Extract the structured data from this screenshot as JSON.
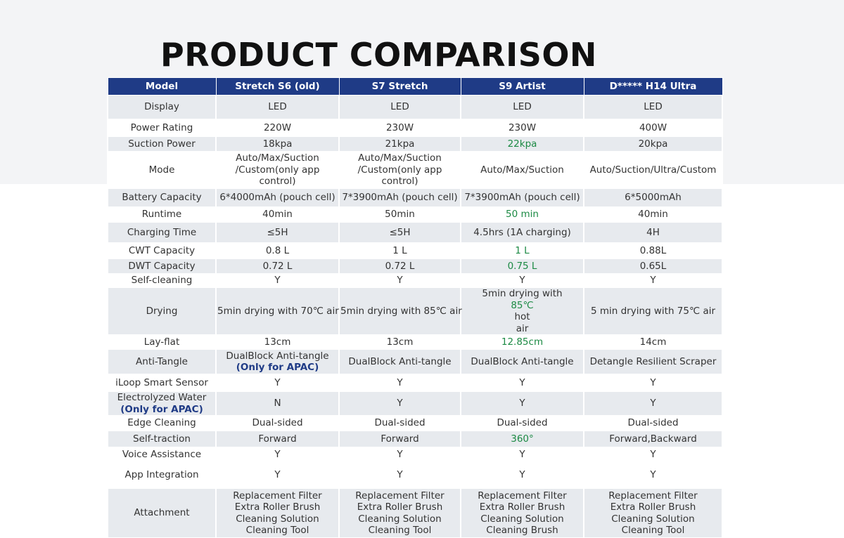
{
  "title": "PRODUCT COMPARISON",
  "colors": {
    "header_bg": "#1f3b86",
    "header_text": "#ffffff",
    "row_shade": "#e7eaee",
    "highlight_green": "#1c8a44",
    "note_blue": "#1f3b86"
  },
  "headers": [
    "Model",
    "Stretch S6 (old)",
    "S7 Stretch",
    "S9 Artist",
    "D***** H14 Ultra"
  ],
  "rows": {
    "display": {
      "label": "Display",
      "values": [
        "LED",
        "LED",
        "LED",
        "LED"
      ]
    },
    "power_rating": {
      "label": "Power Rating",
      "values": [
        "220W",
        "230W",
        "230W",
        "400W"
      ]
    },
    "suction_power": {
      "label": "Suction Power",
      "values": [
        "18kpa",
        "21kpa",
        "22kpa",
        "20kpa"
      ]
    },
    "mode": {
      "label": "Mode",
      "s6": [
        "Auto/Max/Suction",
        "/Custom(only app",
        "control)"
      ],
      "s7": [
        "Auto/Max/Suction",
        "/Custom(only app",
        "control)"
      ],
      "s9": "Auto/Max/Suction",
      "h14": "Auto/Suction/Ultra/Custom"
    },
    "battery_capacity": {
      "label": "Battery Capacity",
      "values": [
        "6*4000mAh (pouch cell)",
        "7*3900mAh (pouch cell)",
        "7*3900mAh (pouch cell)",
        "6*5000mAh"
      ]
    },
    "runtime": {
      "label": "Runtime",
      "values": [
        "40min",
        "50min",
        "50 min",
        "40min"
      ]
    },
    "charging_time": {
      "label": "Charging Time",
      "values": [
        "≤5H",
        "≤5H",
        "4.5hrs (1A charging)",
        "4H"
      ]
    },
    "cwt_capacity": {
      "label": "CWT Capacity",
      "values": [
        "0.8 L",
        "1 L",
        "1 L",
        "0.88L"
      ]
    },
    "dwt_capacity": {
      "label": "DWT Capacity",
      "values": [
        "0.72 L",
        "0.72 L",
        "0.75 L",
        "0.65L"
      ]
    },
    "self_cleaning": {
      "label": "Self-cleaning",
      "values": [
        "Y",
        "Y",
        "Y",
        "Y"
      ]
    },
    "drying": {
      "label": "Drying",
      "s6": "5min drying with 70℃  air",
      "s7": "5min drying with 85℃  air",
      "s9_before": "5min drying with ",
      "s9_green": "85℃",
      "s9_after": " hot",
      "s9_line2": "air",
      "h14": "5 min drying with 75℃ air"
    },
    "lay_flat": {
      "label": "Lay-flat",
      "values": [
        "13cm",
        "13cm",
        "12.85cm",
        "14cm"
      ]
    },
    "anti_tangle": {
      "label": "Anti-Tangle",
      "s6": "DualBlock Anti-tangle",
      "s6_note": "(Only for APAC)",
      "s7": "DualBlock Anti-tangle",
      "s9": "DualBlock Anti-tangle",
      "h14": "Detangle Resilient Scraper"
    },
    "iloop_sensor": {
      "label": "iLoop Smart Sensor",
      "values": [
        "Y",
        "Y",
        "Y",
        "Y"
      ]
    },
    "electrolyzed_water": {
      "label": "Electrolyzed Water",
      "note": "(Only for APAC)",
      "values": [
        "N",
        "Y",
        "Y",
        "Y"
      ]
    },
    "edge_cleaning": {
      "label": "Edge Cleaning",
      "values": [
        "Dual-sided",
        "Dual-sided",
        "Dual-sided",
        "Dual-sided"
      ]
    },
    "self_traction": {
      "label": "Self-traction",
      "values": [
        "Forward",
        "Forward",
        "360°",
        "Forward,Backward"
      ]
    },
    "voice_assistance": {
      "label": "Voice Assistance",
      "values": [
        "Y",
        "Y",
        "Y",
        "Y"
      ]
    },
    "app_integration": {
      "label": "App Integration",
      "values": [
        "Y",
        "Y",
        "Y",
        "Y"
      ]
    },
    "attachment": {
      "label": "Attachment",
      "s6": [
        "Replacement Filter",
        "Extra Roller Brush",
        "Cleaning Solution",
        "Cleaning Tool"
      ],
      "s7": [
        "Replacement Filter",
        "Extra Roller Brush",
        "Cleaning Solution",
        "Cleaning Tool"
      ],
      "s9": [
        "Replacement Filter",
        "Extra Roller Brush",
        "Cleaning Solution",
        "Cleaning Brush"
      ],
      "h14": [
        "Replacement Filter",
        "Extra Roller Brush",
        "Cleaning Solution",
        "Cleaning Tool"
      ]
    }
  }
}
